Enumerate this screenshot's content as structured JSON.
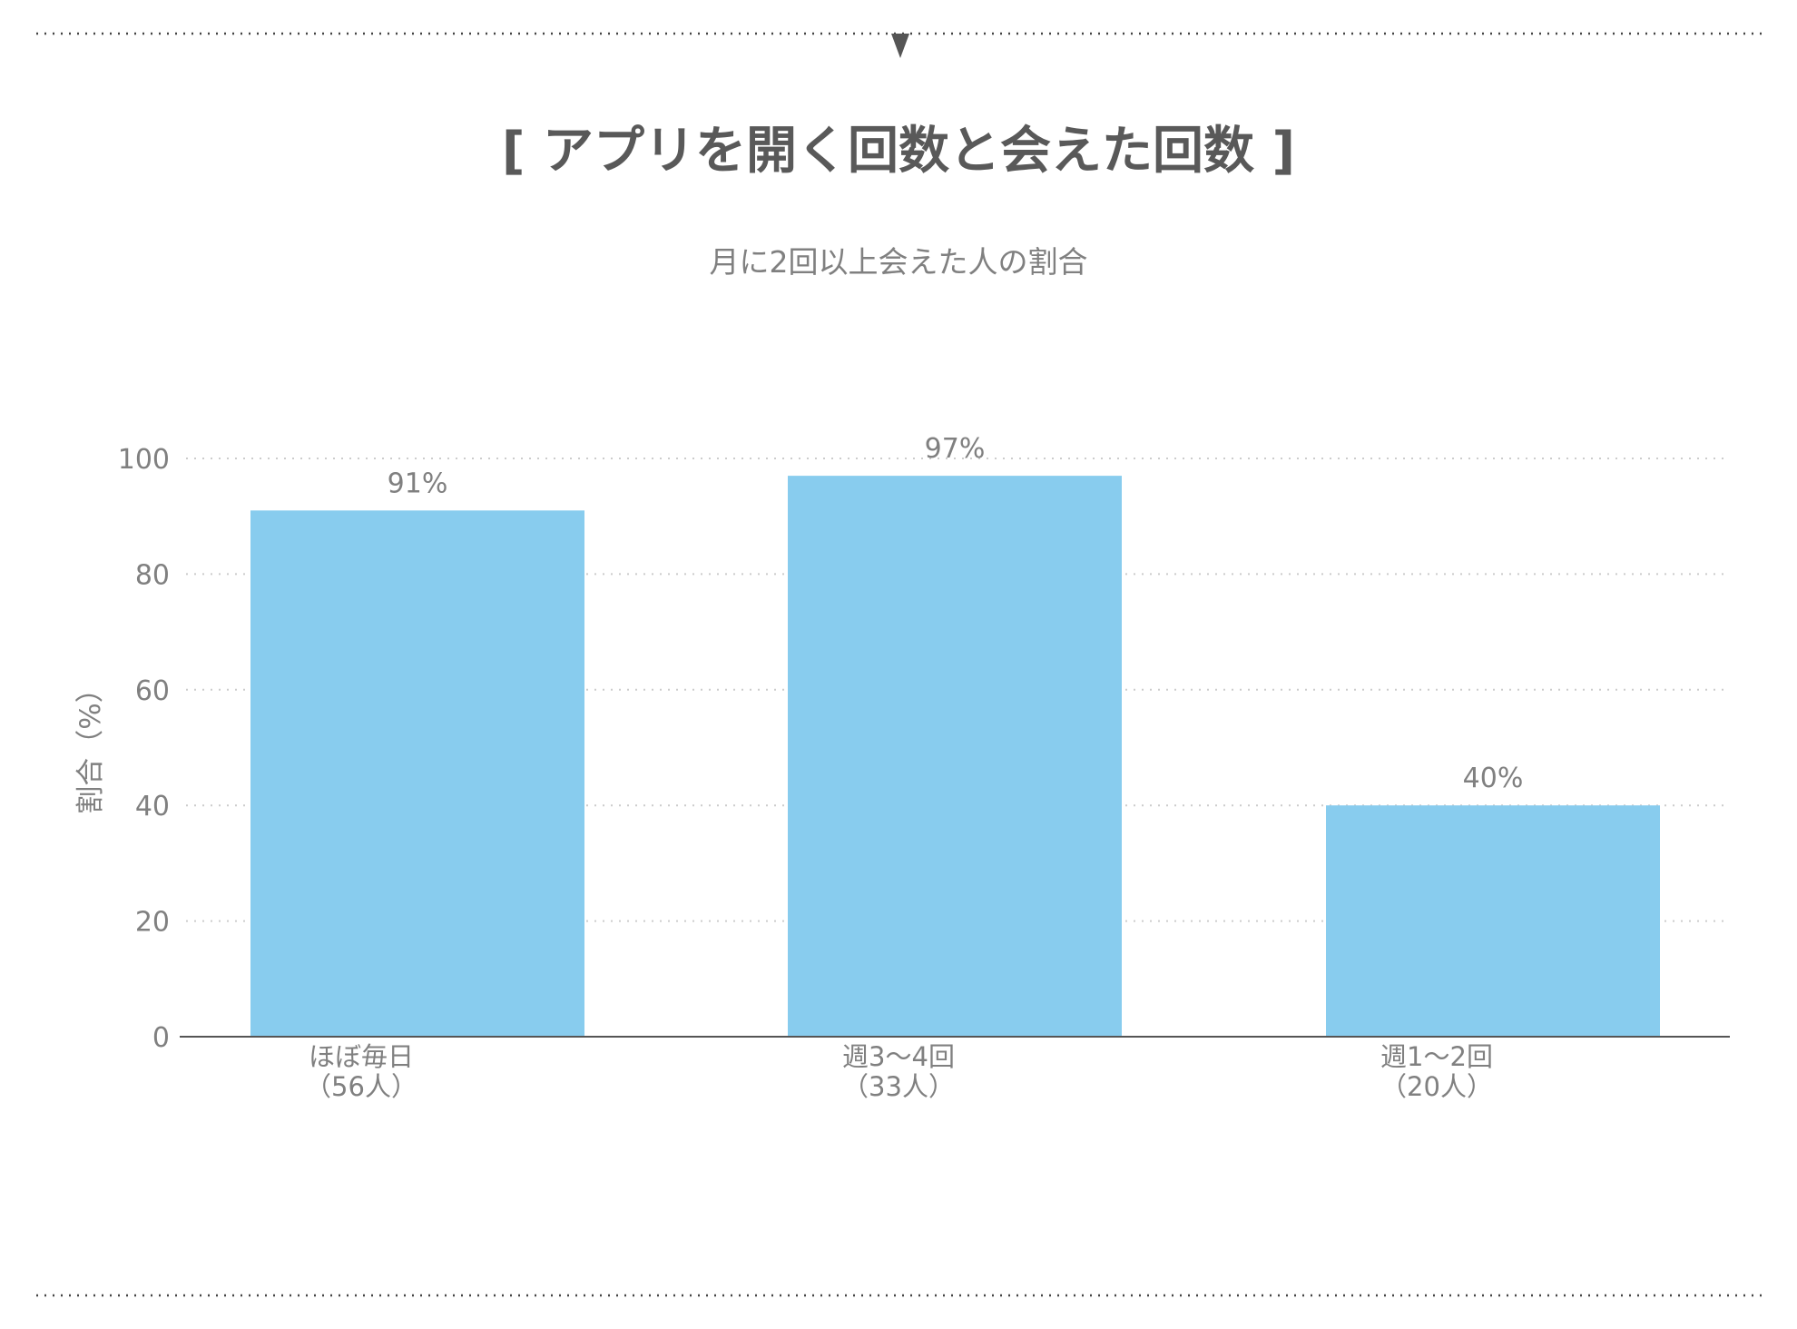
{
  "chart_data": {
    "type": "bar",
    "title": "[ アプリを開く回数と会えた回数 ]",
    "subtitle": "月に2回以上会えた人の割合",
    "ylabel": "割合（%）",
    "ylim": [
      0,
      100
    ],
    "yticks": [
      0,
      20,
      40,
      60,
      80,
      100
    ],
    "grid": true,
    "categories": [
      [
        "ほぼ毎日",
        "（56人）"
      ],
      [
        "週3〜4回",
        "（33人）"
      ],
      [
        "週1〜2回",
        "（20人）"
      ]
    ],
    "values": [
      91,
      97,
      40
    ],
    "value_labels": [
      "91%",
      "97%",
      "40%"
    ]
  },
  "colors": {
    "bar": "#88ccee",
    "title": "#595959",
    "text": "#808080",
    "axis": "#555555",
    "grid": "#cccccc",
    "border": "#444444"
  }
}
